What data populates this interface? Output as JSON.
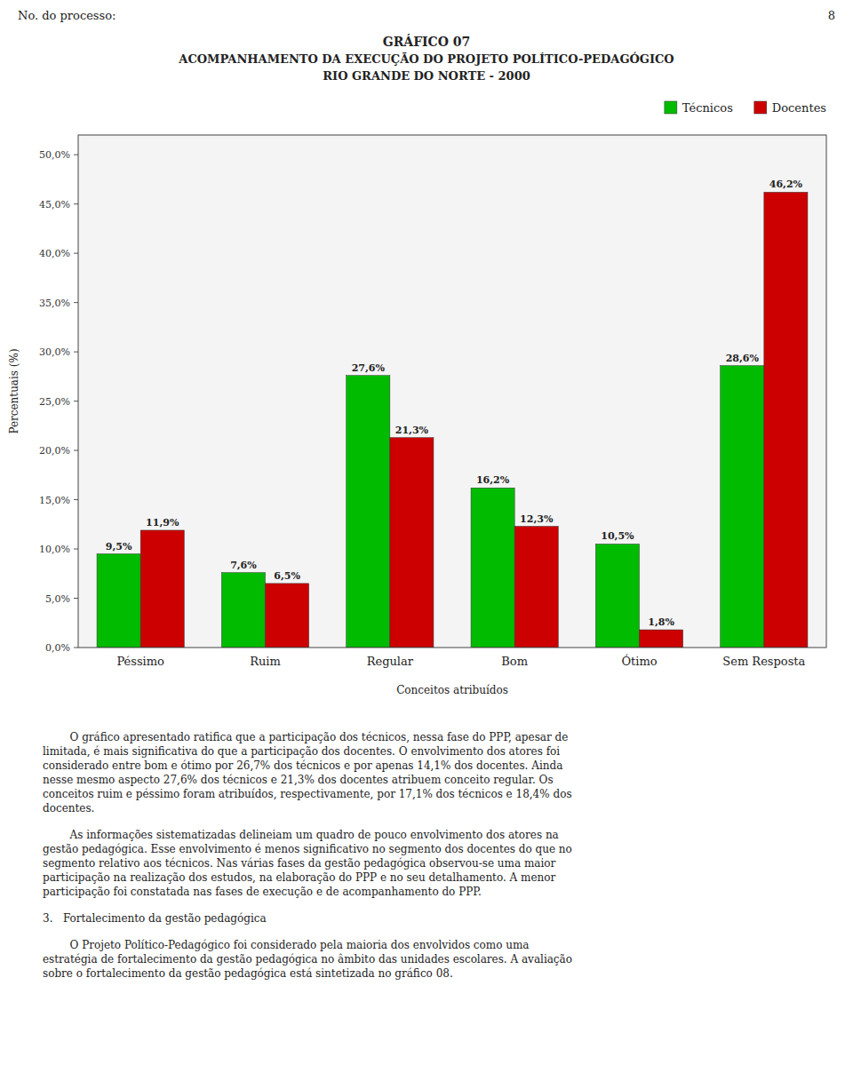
{
  "chart_data": {
    "type": "bar",
    "title": "GRÁFICO 07",
    "subtitle": [
      "ACOMPANHAMENTO DA EXECUÇÃO DO PROJETO POLÍTICO-PEDAGÓGICO",
      "RIO GRANDE DO NORTE - 2000"
    ],
    "categories": [
      "Péssimo",
      "Ruim",
      "Regular",
      "Bom",
      "Ótimo",
      "Sem Resposta"
    ],
    "series": [
      {
        "name": "Técnicos",
        "color": "#00bb00",
        "values": [
          9.5,
          7.6,
          27.6,
          16.2,
          10.5,
          28.6
        ],
        "value_labels": [
          "9,5%",
          "7,6%",
          "27,6%",
          "16,2%",
          "10,5%",
          "28,6%"
        ]
      },
      {
        "name": "Docentes",
        "color": "#cc0000",
        "values": [
          11.9,
          6.5,
          21.3,
          12.3,
          1.8,
          46.2
        ],
        "value_labels": [
          "11,9%",
          "6,5%",
          "21,3%",
          "12,3%",
          "1,8%",
          "46,2%"
        ]
      }
    ],
    "xlabel": "Conceitos atribuídos",
    "ylabel": "Percentuais (%)",
    "ylim": [
      0,
      52
    ],
    "yticks": [
      {
        "value": 0.0,
        "label": "0,0%"
      },
      {
        "value": 5.0,
        "label": "5,0%"
      },
      {
        "value": 10.0,
        "label": "10,0%"
      },
      {
        "value": 15.0,
        "label": "15,0%"
      },
      {
        "value": 20.0,
        "label": "20,0%"
      },
      {
        "value": 25.0,
        "label": "25,0%"
      },
      {
        "value": 30.0,
        "label": "30,0%"
      },
      {
        "value": 35.0,
        "label": "35,0%"
      },
      {
        "value": 40.0,
        "label": "40,0%"
      },
      {
        "value": 45.0,
        "label": "45,0%"
      },
      {
        "value": 50.0,
        "label": "50,0%"
      }
    ],
    "grid": false,
    "legend": "upper right",
    "data_labels": true,
    "annotations": [
      "No. do processo:",
      "8",
      "        O gráfico apresentado ratifica que a participação dos técnicos, nessa fase do PPP, apesar de\nlimitada, é mais significativa do que a participação dos docentes. O envolvimento dos atores foi\nconsiderado entre bom e ótimo por 26,7% dos técnicos e por apenas 14,1% dos docentes. Ainda\nnesse mesmo aspecto 27,6% dos técnicos e 21,3% dos docentes atribuem conceito regular. Os\nconceitos ruim e péssimo foram atribuídos, respectivamente, por 17,1% dos técnicos e 18,4% dos\ndocentes.",
      "        As informações sistematizadas delineiam um quadro de pouco envolvimento dos atores na\ngestão pedagógica. Esse envolvimento é menos significativo no segmento dos docentes do que no\nsegmento relativo aos técnicos. Nas várias fases da gestão pedagógica observou-se uma maior\nparticipação na realização dos estudos, na elaboração do PPP e no seu detalhamento. A menor\nparticipação foi constatada nas fases de execução e de acompanhamento do PPP.",
      "3.   Fortalecimento da gestão pedagógica",
      "        O Projeto Político-Pedagógico foi considerado pela maioria dos envolvidos como uma\nestratégia de fortalecimento da gestão pedagógica no âmbito das unidades escolares. A avaliação\nsobre o fortalecimento da gestão pedagógica está sintetizada no gráfico 08."
    ]
  }
}
